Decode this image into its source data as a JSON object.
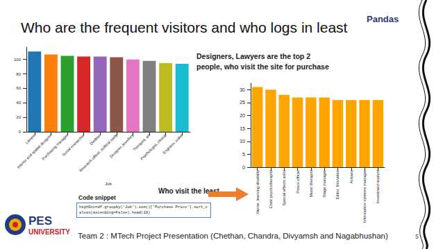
{
  "slide": {
    "title": "Who are the frequent visitors and who logs in least",
    "logo_text": "Pandas",
    "annotations": [
      {
        "lines": [
          "Designers, Lawyers are the top 2",
          "people, who visit the site for purchase"
        ]
      },
      {
        "lines": [
          "Who visit the least"
        ]
      }
    ],
    "code_heading": "Code snippet",
    "code": "highOcc=df.groupby('Job').sum()['Purchase Price'].sort_values(ascending=False).head(10)",
    "university": [
      "PES",
      "UNIVERSITY"
    ],
    "footer": "Team 2 : MTech Project Presentation (Chethan, Chandra, Divyamsh and Nagabhushan)",
    "page": 5
  },
  "chart_data": [
    {
      "type": "bar",
      "x_label": "Job",
      "categories": [
        "Lawyer",
        "Interior and spatial designer",
        "Purchasing manager",
        "Social researcher",
        "Dietitian",
        "Research officer, political party",
        "Designer, jewellery",
        "Therapist, art",
        "Psychologist, clinical",
        "Engineer, water"
      ],
      "values": [
        111,
        107,
        105,
        104,
        104,
        103,
        100,
        98,
        95,
        94
      ],
      "colors": [
        "#1f77b4",
        "#ff7f0e",
        "#2ca02c",
        "#d62728",
        "#9467bd",
        "#8c564b",
        "#e377c2",
        "#7f7f7f",
        "#bcbd22",
        "#17becf"
      ],
      "ylim": [
        0,
        117
      ],
      "yticks": [
        0,
        20,
        40,
        60,
        80,
        100
      ],
      "grid": false
    },
    {
      "type": "bar",
      "categories": [
        "Nurse, learning disability",
        "Child psychotherapist",
        "Special effects artist",
        "Prison officer",
        "Music therapist",
        "Stage manager",
        "Editor, film/video",
        "Actuary",
        "Information systems manager",
        "Investment analyst"
      ],
      "values": [
        31,
        30,
        28,
        27,
        27,
        27,
        26,
        26,
        26,
        26
      ],
      "color": "#ffa500",
      "ylim": [
        0,
        32.5
      ],
      "yticks": [
        0,
        5,
        10,
        15,
        20,
        25,
        30
      ],
      "grid": false
    }
  ]
}
